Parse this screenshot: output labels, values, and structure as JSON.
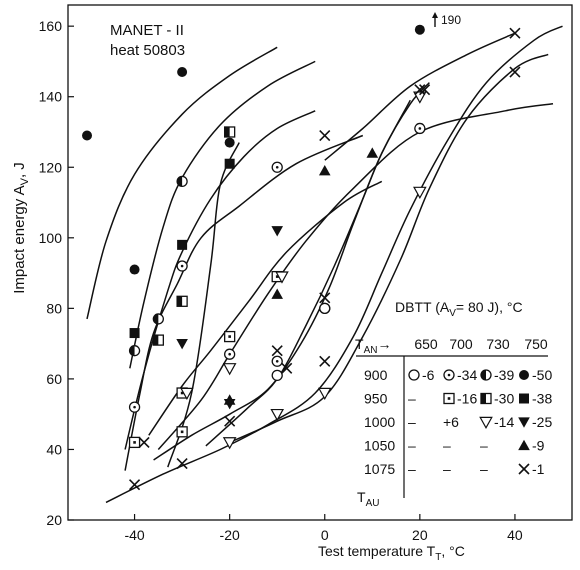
{
  "chart_data": {
    "type": "scatter",
    "annotation_line1": "MANET - II",
    "annotation_line2": "heat 50803",
    "xlabel": "Test temperature T",
    "xlabel_sub": "T",
    "xlabel_unit": ", °C",
    "ylabel": "Impact energy A",
    "ylabel_sub": "V",
    "ylabel_unit": ", J",
    "xlim": [
      -54,
      52
    ],
    "ylim": [
      20,
      166
    ],
    "x_ticks": [
      -40,
      -20,
      0,
      20,
      40
    ],
    "y_ticks": [
      20,
      40,
      60,
      80,
      100,
      120,
      140,
      160
    ],
    "offscale_label": "190",
    "dbtt_title": "DBTT (A",
    "dbtt_title_sub": "V",
    "dbtt_title_rest": "= 80 J),  °C",
    "table": {
      "corner_label": "T",
      "corner_sub": "AN",
      "corner_arrow": "→",
      "row_axis_label": "T",
      "row_axis_sub": "AU",
      "columns": [
        "650",
        "700",
        "730",
        "750"
      ],
      "rows": [
        {
          "tau": "900",
          "cells": [
            {
              "marker": "circle-open",
              "value": "-6"
            },
            {
              "marker": "circle-dot",
              "value": "-34"
            },
            {
              "marker": "circle-half",
              "value": "-39"
            },
            {
              "marker": "circle-filled",
              "value": "-50"
            }
          ]
        },
        {
          "tau": "950",
          "cells": [
            {
              "marker": "none",
              "value": "–"
            },
            {
              "marker": "square-dot",
              "value": "-16"
            },
            {
              "marker": "square-half",
              "value": "-30"
            },
            {
              "marker": "square-filled",
              "value": "-38"
            }
          ]
        },
        {
          "tau": "1000",
          "cells": [
            {
              "marker": "none",
              "value": "–"
            },
            {
              "marker": "none",
              "value": "+6"
            },
            {
              "marker": "triangle-down-open",
              "value": "-14"
            },
            {
              "marker": "triangle-down-filled",
              "value": "-25"
            }
          ]
        },
        {
          "tau": "1050",
          "cells": [
            {
              "marker": "none",
              "value": "–"
            },
            {
              "marker": "none",
              "value": "–"
            },
            {
              "marker": "none",
              "value": "–"
            },
            {
              "marker": "triangle-up-filled",
              "value": "-9"
            }
          ]
        },
        {
          "tau": "1075",
          "cells": [
            {
              "marker": "none",
              "value": "–"
            },
            {
              "marker": "none",
              "value": "–"
            },
            {
              "marker": "none",
              "value": "–"
            },
            {
              "marker": "cross",
              "value": "-1"
            }
          ]
        }
      ]
    },
    "series": [
      {
        "marker": "circle-filled",
        "points": [
          [
            -50,
            129
          ],
          [
            -40,
            91
          ],
          [
            -30,
            147
          ],
          [
            -20,
            127
          ],
          [
            20,
            159
          ]
        ]
      },
      {
        "marker": "circle-half",
        "points": [
          [
            -40,
            68
          ],
          [
            -35,
            77
          ],
          [
            -30,
            116
          ]
        ]
      },
      {
        "marker": "circle-dot",
        "points": [
          [
            -40,
            52
          ],
          [
            -30,
            92
          ],
          [
            -20,
            67
          ],
          [
            -10,
            120
          ],
          [
            -10,
            65
          ],
          [
            0,
            80
          ],
          [
            20,
            131
          ]
        ]
      },
      {
        "marker": "circle-open",
        "points": [
          [
            -10,
            61
          ],
          [
            0,
            80
          ]
        ]
      },
      {
        "marker": "square-filled",
        "points": [
          [
            -40,
            73
          ],
          [
            -30,
            98
          ],
          [
            -20,
            121
          ]
        ]
      },
      {
        "marker": "square-half",
        "points": [
          [
            -35,
            71
          ],
          [
            -30,
            82
          ],
          [
            -20,
            130
          ]
        ]
      },
      {
        "marker": "square-dot",
        "points": [
          [
            -40,
            42
          ],
          [
            -30,
            56
          ],
          [
            -30,
            45
          ],
          [
            -20,
            72
          ],
          [
            -10,
            89
          ]
        ]
      },
      {
        "marker": "triangle-down-filled",
        "points": [
          [
            -30,
            70
          ],
          [
            -20,
            53
          ],
          [
            -10,
            102
          ]
        ]
      },
      {
        "marker": "triangle-down-open",
        "points": [
          [
            -29,
            56
          ],
          [
            -20,
            63
          ],
          [
            -20,
            42
          ],
          [
            -10,
            50
          ],
          [
            -9,
            89
          ],
          [
            0,
            56
          ],
          [
            20,
            140
          ],
          [
            20,
            113
          ]
        ]
      },
      {
        "marker": "triangle-up-filled",
        "points": [
          [
            -20,
            54
          ],
          [
            -10,
            84
          ],
          [
            0,
            119
          ],
          [
            10,
            124
          ]
        ]
      },
      {
        "marker": "cross",
        "points": [
          [
            -40,
            30
          ],
          [
            -38,
            42
          ],
          [
            -30,
            36
          ],
          [
            -20,
            48
          ],
          [
            -10,
            68
          ],
          [
            -8,
            63
          ],
          [
            0,
            129
          ],
          [
            0,
            83
          ],
          [
            0,
            65
          ],
          [
            20,
            142
          ],
          [
            21,
            142
          ],
          [
            40,
            158
          ],
          [
            40,
            147
          ]
        ]
      }
    ]
  }
}
